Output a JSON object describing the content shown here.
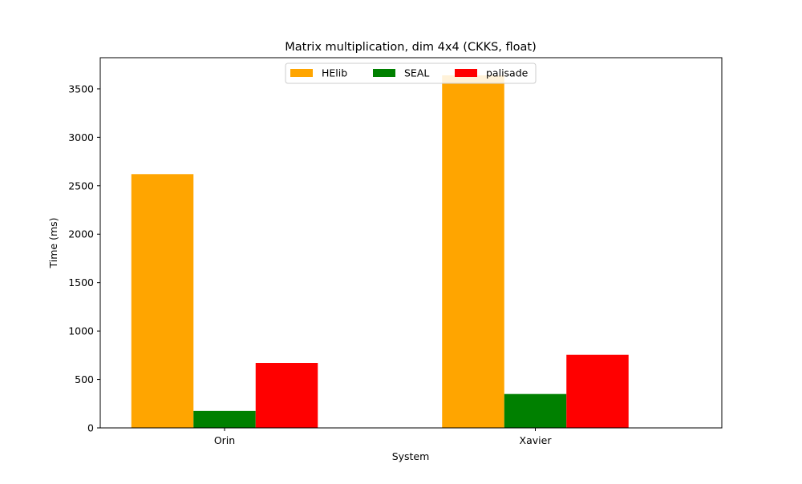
{
  "chart_data": {
    "type": "bar",
    "title": "Matrix multiplication, dim 4x4 (CKKS, float)",
    "xlabel": "System",
    "ylabel": "Time (ms)",
    "categories": [
      "Orin",
      "Xavier"
    ],
    "series": [
      {
        "name": "HElib",
        "color": "#ffa500",
        "values": [
          2620,
          3640
        ]
      },
      {
        "name": "SEAL",
        "color": "#008000",
        "values": [
          175,
          350
        ]
      },
      {
        "name": "palisade",
        "color": "#ff0000",
        "values": [
          670,
          755
        ]
      }
    ],
    "ylim": [
      0,
      3822
    ],
    "yticks": [
      0,
      500,
      1000,
      1500,
      2000,
      2500,
      3000,
      3500
    ],
    "legend": "upper-center",
    "grid": false
  }
}
